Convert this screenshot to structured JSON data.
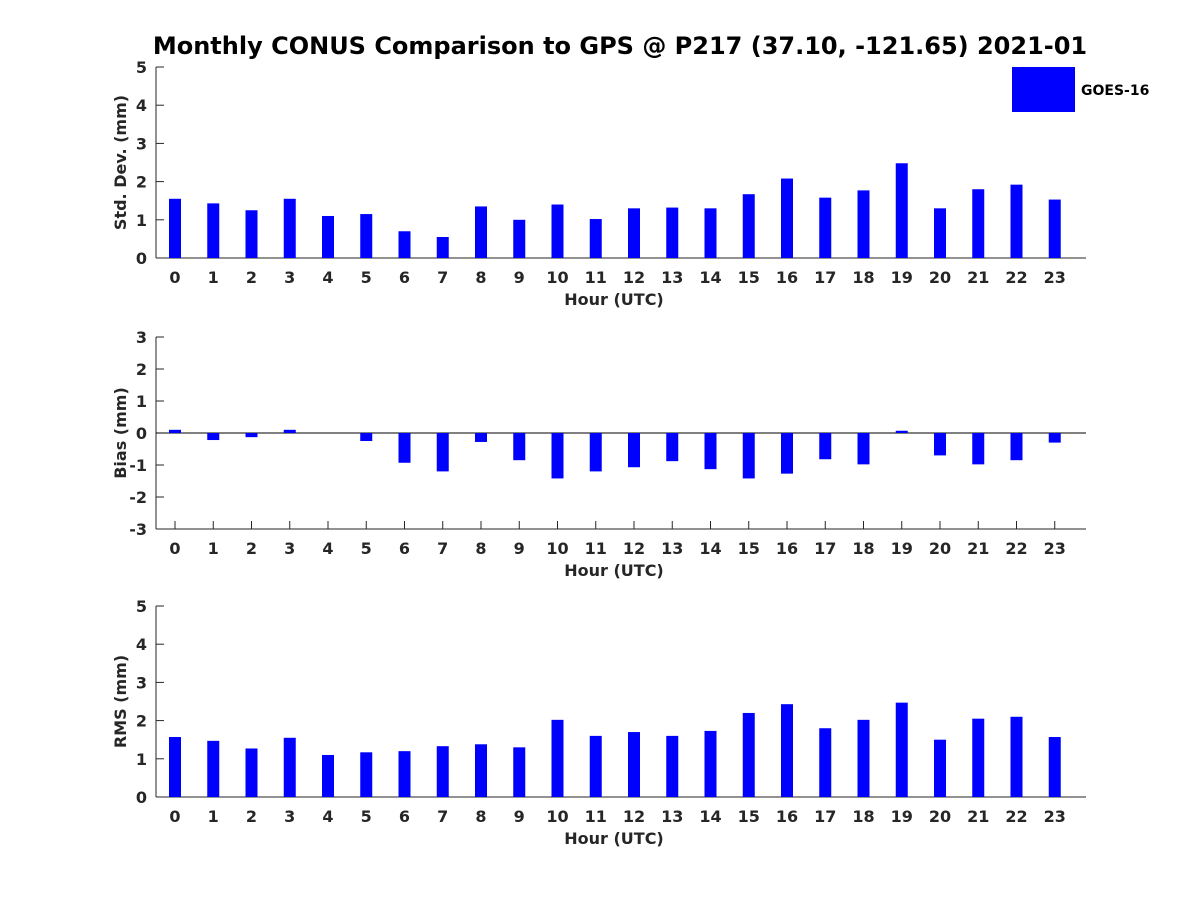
{
  "title": "Monthly CONUS Comparison to GPS @ P217 (37.10, -121.65) 2021-01",
  "legend": {
    "label": "GOES-16",
    "color": "#0000ff"
  },
  "chart_data": [
    {
      "type": "bar",
      "xlabel": "Hour (UTC)",
      "ylabel": "Std. Dev. (mm)",
      "ylim": [
        0,
        5
      ],
      "yticks": [
        0,
        1,
        2,
        3,
        4,
        5
      ],
      "categories": [
        "0",
        "1",
        "2",
        "3",
        "4",
        "5",
        "6",
        "7",
        "8",
        "9",
        "10",
        "11",
        "12",
        "13",
        "14",
        "15",
        "16",
        "17",
        "18",
        "19",
        "20",
        "21",
        "22",
        "23"
      ],
      "series": [
        {
          "name": "GOES-16",
          "values": [
            1.55,
            1.43,
            1.25,
            1.55,
            1.1,
            1.15,
            0.7,
            0.55,
            1.35,
            1.0,
            1.4,
            1.02,
            1.3,
            1.32,
            1.3,
            1.67,
            2.08,
            1.58,
            1.77,
            2.48,
            1.3,
            1.8,
            1.92,
            1.53
          ]
        }
      ]
    },
    {
      "type": "bar",
      "xlabel": "Hour (UTC)",
      "ylabel": "Bias (mm)",
      "ylim": [
        -3,
        3
      ],
      "yticks": [
        -3,
        -2,
        -1,
        0,
        1,
        2,
        3
      ],
      "categories": [
        "0",
        "1",
        "2",
        "3",
        "4",
        "5",
        "6",
        "7",
        "8",
        "9",
        "10",
        "11",
        "12",
        "13",
        "14",
        "15",
        "16",
        "17",
        "18",
        "19",
        "20",
        "21",
        "22",
        "23"
      ],
      "series": [
        {
          "name": "GOES-16",
          "values": [
            0.1,
            -0.22,
            -0.13,
            0.1,
            0.0,
            -0.25,
            -0.93,
            -1.2,
            -0.28,
            -0.85,
            -1.42,
            -1.2,
            -1.07,
            -0.88,
            -1.13,
            -1.42,
            -1.27,
            -0.82,
            -0.98,
            0.07,
            -0.7,
            -0.98,
            -0.85,
            -0.3
          ]
        }
      ]
    },
    {
      "type": "bar",
      "xlabel": "Hour (UTC)",
      "ylabel": "RMS (mm)",
      "ylim": [
        0,
        5
      ],
      "yticks": [
        0,
        1,
        2,
        3,
        4,
        5
      ],
      "categories": [
        "0",
        "1",
        "2",
        "3",
        "4",
        "5",
        "6",
        "7",
        "8",
        "9",
        "10",
        "11",
        "12",
        "13",
        "14",
        "15",
        "16",
        "17",
        "18",
        "19",
        "20",
        "21",
        "22",
        "23"
      ],
      "series": [
        {
          "name": "GOES-16",
          "values": [
            1.57,
            1.47,
            1.27,
            1.55,
            1.1,
            1.17,
            1.2,
            1.33,
            1.38,
            1.3,
            2.02,
            1.6,
            1.7,
            1.6,
            1.73,
            2.2,
            2.43,
            1.8,
            2.02,
            2.47,
            1.5,
            2.05,
            2.1,
            1.57
          ]
        }
      ]
    }
  ]
}
